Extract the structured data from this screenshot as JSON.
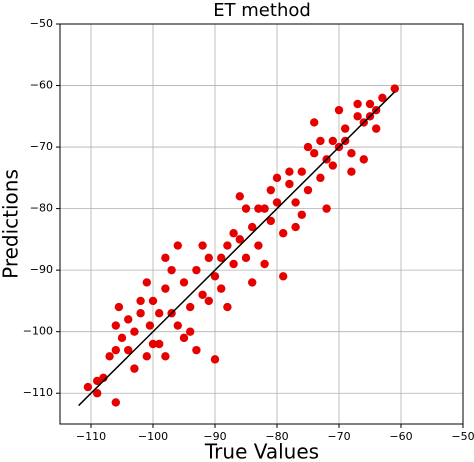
{
  "chart_data": {
    "type": "scatter",
    "title": "ET method",
    "x_label": "True Values",
    "y_label": "Predictions",
    "xlim": [
      -115,
      -50
    ],
    "ylim": [
      -115,
      -50
    ],
    "xticks": [
      {
        "value": -110,
        "label": "−110"
      },
      {
        "value": -100,
        "label": "−100"
      },
      {
        "value": -90,
        "label": "−90"
      },
      {
        "value": -80,
        "label": "−80"
      },
      {
        "value": -70,
        "label": "−70"
      },
      {
        "value": -60,
        "label": "−60"
      },
      {
        "value": -50,
        "label": "−50"
      }
    ],
    "yticks": [
      {
        "value": -110,
        "label": "−110"
      },
      {
        "value": -100,
        "label": "−100"
      },
      {
        "value": -90,
        "label": "−90"
      },
      {
        "value": -80,
        "label": "−80"
      },
      {
        "value": -70,
        "label": "−70"
      },
      {
        "value": -60,
        "label": "−60"
      },
      {
        "value": -50,
        "label": "−50"
      }
    ],
    "grid": true,
    "color": "#e60000",
    "x": [
      -110.5,
      -109,
      -108,
      -106,
      -107,
      -106,
      -105.5,
      -105,
      -104,
      -103,
      -102,
      -101,
      -100.5,
      -100,
      -99,
      -98,
      -97,
      -96,
      -95,
      -94,
      -93,
      -92,
      -91,
      -90,
      -89,
      -88,
      -87,
      -86,
      -85,
      -84,
      -83,
      -82,
      -81,
      -80,
      -79,
      -78,
      -77,
      -76,
      -75,
      -74,
      -73,
      -72,
      -71,
      -70,
      -69,
      -68,
      -67,
      -66,
      -65,
      -64,
      -63,
      -61,
      -98,
      -96,
      -93,
      -90,
      -84,
      -86,
      -80,
      -75,
      -71,
      -72,
      -68,
      -66,
      -77,
      -79,
      -103,
      -101,
      -95,
      -92,
      -88,
      -85,
      -82,
      -76,
      -74,
      -70,
      -67,
      -64,
      -98,
      -99,
      -102,
      -97,
      -94,
      -91,
      -89,
      -87,
      -83,
      -81,
      -78,
      -73,
      -69,
      -65,
      -109,
      -106,
      -104,
      -100
    ],
    "values": [
      -109,
      -108,
      -107.5,
      -111.5,
      -104,
      -99,
      -96,
      -101,
      -103,
      -100,
      -97,
      -104,
      -99,
      -95,
      -102,
      -93,
      -97,
      -99,
      -92,
      -96,
      -90,
      -94,
      -88,
      -91,
      -93,
      -86,
      -89,
      -85,
      -88,
      -83,
      -86,
      -80,
      -82,
      -79,
      -84,
      -76,
      -79,
      -74,
      -77,
      -71,
      -75,
      -72,
      -69,
      -70,
      -67,
      -71,
      -65,
      -66,
      -63,
      -64,
      -62,
      -60.5,
      -88,
      -86,
      -103,
      -104.5,
      -92,
      -78,
      -75,
      -70,
      -73,
      -80,
      -74,
      -72,
      -83,
      -91,
      -106,
      -92,
      -101,
      -86,
      -96,
      -80,
      -89,
      -81,
      -66,
      -64,
      -63,
      -67,
      -104,
      -97,
      -95,
      -90,
      -100,
      -95,
      -88,
      -84,
      -80,
      -77,
      -74,
      -69,
      -69,
      -65,
      -110,
      -103,
      -98,
      -102
    ],
    "ref_line_x": [
      -112,
      -61
    ],
    "ref_line_y": [
      -112,
      -61
    ],
    "ref_line_color": "#000000"
  }
}
